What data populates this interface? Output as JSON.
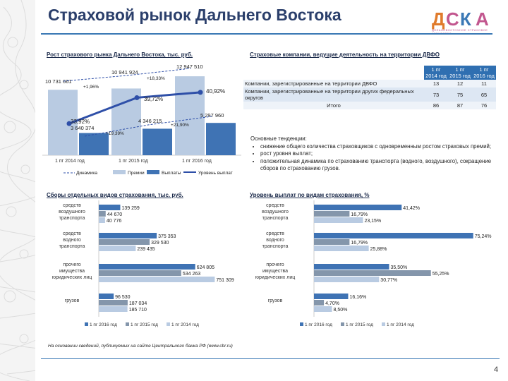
{
  "page": {
    "title": "Страховой рынок Дальнего Востока",
    "logo_text": "ДОЛЬНЕВОСТОЧНОЕ СТРАХОВОЕ АГЕНТСТВО",
    "page_number": "4",
    "footnote": "На основании сведений, публикуемых на сайте Центрального банка РФ (www.cbr.ru)"
  },
  "sections": {
    "growth": "Рост страхового рынка Дальнего Востока, тыс. руб.",
    "companies": "Страховые компании, ведущие деятельность на территории ДВФО",
    "collections": "Сборы отдельных видов страхования, тыс. руб.",
    "payout": "Уровень выплат по видам страхования, %"
  },
  "companies_table": {
    "headers": [
      "1 пг 2014 год",
      "1 пг 2015 год",
      "1 пг 2016 год"
    ],
    "rows": [
      {
        "label": "Компании, зарегистрированные на территории ДВФО",
        "values": [
          "13",
          "12",
          "11"
        ]
      },
      {
        "label": "Компании, зарегистрированные на территории других федеральных округов",
        "values": [
          "73",
          "75",
          "65"
        ]
      },
      {
        "label": "Итого",
        "values": [
          "86",
          "87",
          "76"
        ]
      }
    ]
  },
  "trends": {
    "heading": "Основные тенденции:",
    "items": [
      "снижение общего количества страховщиков с одновременным ростом страховых премий;",
      "рост уровня выплат;",
      "положительная динамика по страхованию транспорта (водного, воздушного), сокращение сборов по страхованию грузов."
    ]
  },
  "chart_data": [
    {
      "type": "bar",
      "title": "Рост страхового рынка Дальнего Востока, тыс. руб.",
      "categories": [
        "1 пг 2014 год",
        "1 пг 2015 год",
        "1 пг 2016 год"
      ],
      "series": [
        {
          "name": "Премии",
          "values": [
            10731661,
            10941924,
            12947510
          ],
          "labels": [
            "10 731 661",
            "10 941 924",
            "12 947 510"
          ],
          "color": "#b9cbe2"
        },
        {
          "name": "Выплаты",
          "values": [
            3640374,
            4346215,
            5297960
          ],
          "labels": [
            "3 640 374",
            "4 346 215",
            "5 297 960"
          ],
          "color": "#3f73b4"
        },
        {
          "name": "Уровень выплат",
          "type": "line",
          "values": [
            33.92,
            39.72,
            40.92
          ],
          "labels": [
            "33,92%",
            "39,72%",
            "40,92%"
          ],
          "color": "#2e4fa8"
        },
        {
          "name": "Динамика",
          "type": "line",
          "dashed": true
        }
      ],
      "annotations": [
        "+1,96%",
        "+18,33%",
        "+19,39%",
        "+21,90%"
      ],
      "ylim": [
        0,
        14000000
      ]
    },
    {
      "type": "bar",
      "orientation": "horizontal",
      "title": "Сборы отдельных видов страхования, тыс. руб.",
      "categories": [
        "средств воздушного транспорта",
        "средств водного транспорта",
        "прочего имущества юридических лиц",
        "грузов"
      ],
      "series": [
        {
          "name": "1 пг 2016 год",
          "values": [
            139259,
            375353,
            624805,
            96530
          ],
          "labels": [
            "139 259",
            "375 353",
            "624 805",
            "96 530"
          ],
          "color": "#3f73b4"
        },
        {
          "name": "1 пг 2015 год",
          "values": [
            44670,
            329530,
            534263,
            187034
          ],
          "labels": [
            "44 670",
            "329 530",
            "534 263",
            "187 034"
          ],
          "color": "#8496ab"
        },
        {
          "name": "1 пг 2014 год",
          "values": [
            40776,
            239435,
            751309,
            185710
          ],
          "labels": [
            "40 776",
            "239 435",
            "751 309",
            "185 710"
          ],
          "color": "#b9cbe2"
        }
      ],
      "xlim": [
        0,
        800000
      ]
    },
    {
      "type": "bar",
      "orientation": "horizontal",
      "title": "Уровень выплат по видам страхования, %",
      "categories": [
        "средств воздушного транспорта",
        "средств водного транспорта",
        "прочего имущества юридических лиц",
        "грузов"
      ],
      "series": [
        {
          "name": "1 пг 2016 год",
          "values": [
            41.42,
            75.24,
            35.5,
            16.16
          ],
          "labels": [
            "41,42%",
            "75,24%",
            "35,50%",
            "16,16%"
          ],
          "color": "#3f73b4"
        },
        {
          "name": "1 пг 2015 год",
          "values": [
            16.79,
            16.79,
            55.25,
            4.7
          ],
          "labels": [
            "16,79%",
            "16,79%",
            "55,25%",
            "4,70%"
          ],
          "color": "#8496ab"
        },
        {
          "name": "1 пг 2014 год",
          "values": [
            23.15,
            25.88,
            30.77,
            8.5
          ],
          "labels": [
            "23,15%",
            "25,88%",
            "30,77%",
            "8,50%"
          ],
          "color": "#b9cbe2"
        }
      ],
      "xlim": [
        0,
        80
      ]
    }
  ]
}
